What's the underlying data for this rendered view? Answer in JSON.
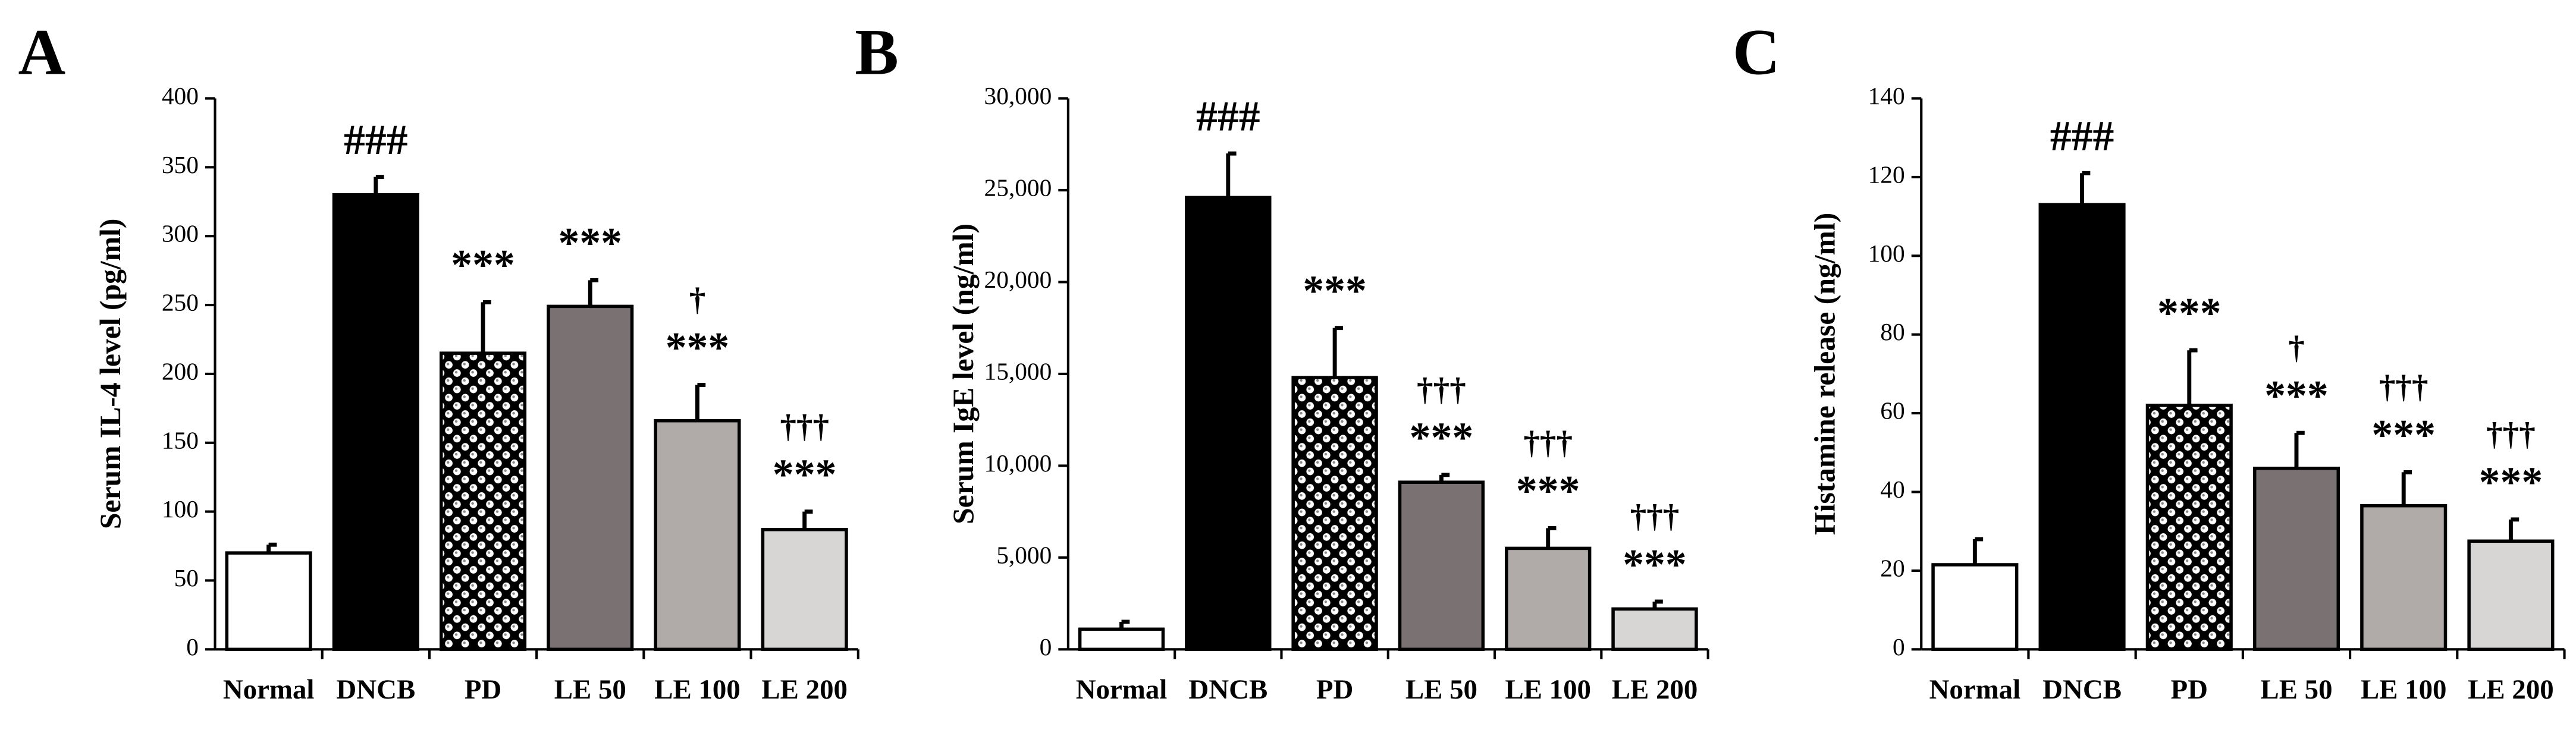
{
  "chart_data": [
    {
      "type": "bar",
      "panel": "A",
      "ylabel": "Serum IL-4 level (pg/ml)",
      "categories": [
        "Normal",
        "DNCB",
        "PD",
        "LE 50",
        "LE 100",
        "LE 200"
      ],
      "values": [
        70,
        330,
        215,
        249,
        166,
        87
      ],
      "errors": [
        6,
        13,
        37,
        19,
        26,
        13
      ],
      "annotations": [
        null,
        [
          "###"
        ],
        [
          "***"
        ],
        [
          "***"
        ],
        [
          "†",
          "***"
        ],
        [
          "†††",
          "***"
        ]
      ],
      "colors": [
        "#ffffff",
        "#000000",
        "#ffffff",
        "#7a7272",
        "#b0aba8",
        "#d8d5d5"
      ],
      "patterns": [
        null,
        null,
        "checker",
        null,
        null,
        null
      ],
      "ylim": [
        0,
        400
      ],
      "yticks": [
        0,
        50,
        100,
        150,
        200,
        250,
        300,
        350,
        400
      ]
    },
    {
      "type": "bar",
      "panel": "B",
      "ylabel": "Serum IgE level (ng/ml)",
      "categories": [
        "Normal",
        "DNCB",
        "PD",
        "LE 50",
        "LE 100",
        "LE 200"
      ],
      "values": [
        1100,
        24600,
        14800,
        9100,
        5500,
        2200
      ],
      "errors": [
        400,
        2400,
        2700,
        400,
        1100,
        400
      ],
      "annotations": [
        null,
        [
          "###"
        ],
        [
          "***"
        ],
        [
          "†††",
          "***"
        ],
        [
          "†††",
          "***"
        ],
        [
          "†††",
          "***"
        ]
      ],
      "colors": [
        "#ffffff",
        "#000000",
        "#ffffff",
        "#7a7272",
        "#b0aba8",
        "#d8d5d5"
      ],
      "patterns": [
        null,
        null,
        "checker",
        null,
        null,
        null
      ],
      "ylim": [
        0,
        30000
      ],
      "yticks": [
        0,
        {
          "value": 5000,
          "label": "5,000"
        },
        {
          "value": 10000,
          "label": "10,000"
        },
        {
          "value": 15000,
          "label": "15,000"
        },
        {
          "value": 20000,
          "label": "20,000"
        },
        {
          "value": 25000,
          "label": "25,000"
        },
        {
          "value": 30000,
          "label": "30,000"
        }
      ]
    },
    {
      "type": "bar",
      "panel": "C",
      "ylabel": "Histamine release (ng/ml)",
      "categories": [
        "Normal",
        "DNCB",
        "PD",
        "LE 50",
        "LE 100",
        "LE 200"
      ],
      "values": [
        21.5,
        113,
        62,
        46,
        36.5,
        27.5
      ],
      "errors": [
        6.5,
        8,
        14,
        9,
        8.5,
        5.5
      ],
      "annotations": [
        null,
        [
          "###"
        ],
        [
          "***"
        ],
        [
          "†",
          "***"
        ],
        [
          "†††",
          "***"
        ],
        [
          "†††",
          "***"
        ]
      ],
      "colors": [
        "#ffffff",
        "#000000",
        "#ffffff",
        "#7a7272",
        "#b0aba8",
        "#d8d5d5"
      ],
      "patterns": [
        null,
        null,
        "checker",
        null,
        null,
        null
      ],
      "ylim": [
        0,
        140
      ],
      "yticks": [
        0,
        20,
        40,
        60,
        80,
        100,
        120,
        140
      ]
    }
  ]
}
